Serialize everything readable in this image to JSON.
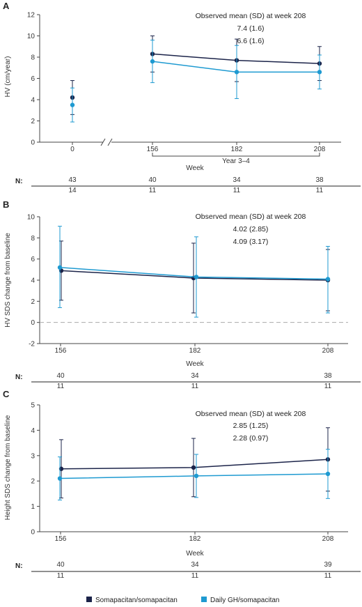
{
  "legend": [
    {
      "label": "Somapacitan/somapacitan",
      "color": "#1b2349"
    },
    {
      "label": "Daily GH/somapacitan",
      "color": "#1e9ad1"
    }
  ],
  "n_label": "N:",
  "chart_data": [
    {
      "panel": "A",
      "type": "line",
      "ylabel": "HV (cm/year)",
      "xlabel": "Week",
      "bracket_label": "Year 3–4",
      "x": [
        "0",
        "156",
        "182",
        "208"
      ],
      "ylim": [
        0,
        12
      ],
      "yticks": [
        0,
        2,
        4,
        6,
        8,
        10,
        12
      ],
      "axis_break": true,
      "annotation_title": "Observed mean (SD) at week 208",
      "annotation_values": [
        "7.4 (1.6)",
        "6.6 (1.6)"
      ],
      "series": [
        {
          "name": "Somapacitan/somapacitan",
          "values": [
            4.2,
            8.3,
            7.7,
            7.4
          ],
          "lower": [
            2.6,
            6.6,
            5.7,
            5.8
          ],
          "upper": [
            5.8,
            10.0,
            9.7,
            9.0
          ],
          "n": [
            "43",
            "40",
            "34",
            "38"
          ]
        },
        {
          "name": "Daily GH/somapacitan",
          "values": [
            3.5,
            7.6,
            6.6,
            6.6
          ],
          "lower": [
            1.9,
            5.6,
            4.1,
            5.0
          ],
          "upper": [
            5.1,
            9.6,
            9.1,
            8.2
          ],
          "n": [
            "14",
            "11",
            "11",
            "11"
          ]
        }
      ]
    },
    {
      "panel": "B",
      "type": "line",
      "ylabel": "HV SDS change from baseline",
      "xlabel": "Week",
      "x": [
        "156",
        "182",
        "208"
      ],
      "ylim": [
        -2,
        10
      ],
      "yticks": [
        -2,
        0,
        2,
        4,
        6,
        8,
        10
      ],
      "reference_line": 0,
      "annotation_title": "Observed mean (SD) at week 208",
      "annotation_values": [
        "4.02 (2.85)",
        "4.09 (3.17)"
      ],
      "series": [
        {
          "name": "Somapacitan/somapacitan",
          "values": [
            4.9,
            4.2,
            4.0
          ],
          "lower": [
            2.1,
            0.9,
            1.1
          ],
          "upper": [
            7.7,
            7.5,
            6.9
          ],
          "n": [
            "40",
            "34",
            "38"
          ]
        },
        {
          "name": "Daily GH/somapacitan",
          "values": [
            5.2,
            4.3,
            4.1
          ],
          "lower": [
            1.4,
            0.5,
            0.9
          ],
          "upper": [
            9.1,
            8.1,
            7.2
          ],
          "n": [
            "11",
            "11",
            "11"
          ]
        }
      ]
    },
    {
      "panel": "C",
      "type": "line",
      "ylabel": "Height SDS change from baseline",
      "xlabel": "Week",
      "x": [
        "156",
        "182",
        "208"
      ],
      "ylim": [
        0,
        5
      ],
      "yticks": [
        0,
        1,
        2,
        3,
        4,
        5
      ],
      "annotation_title": "Observed mean (SD) at week 208",
      "annotation_values": [
        "2.85 (1.25)",
        "2.28 (0.97)"
      ],
      "series": [
        {
          "name": "Somapacitan/somapacitan",
          "values": [
            2.48,
            2.53,
            2.85
          ],
          "lower": [
            1.33,
            1.38,
            1.6
          ],
          "upper": [
            3.63,
            3.68,
            4.1
          ],
          "n": [
            "40",
            "34",
            "39"
          ]
        },
        {
          "name": "Daily GH/somapacitan",
          "values": [
            2.1,
            2.2,
            2.28
          ],
          "lower": [
            1.25,
            1.35,
            1.31
          ],
          "upper": [
            2.95,
            3.05,
            3.25
          ],
          "n": [
            "11",
            "11",
            "11"
          ]
        }
      ]
    }
  ]
}
